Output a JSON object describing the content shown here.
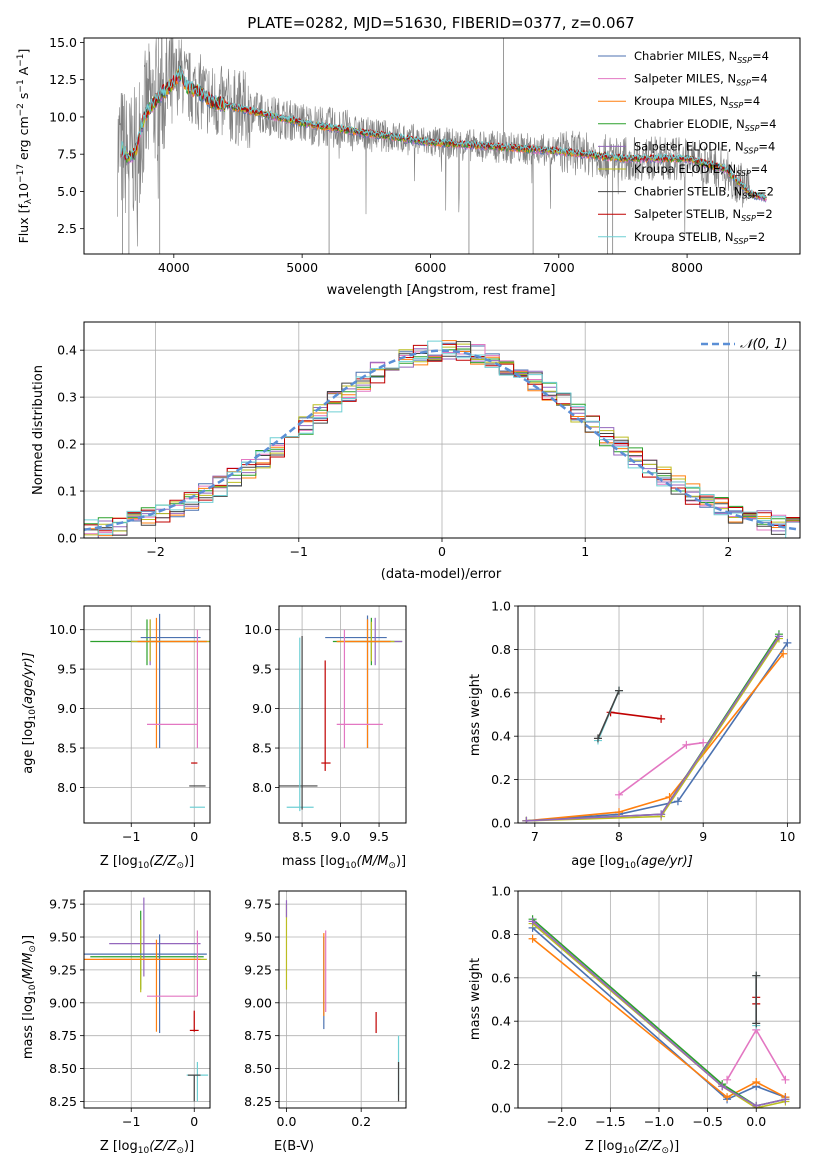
{
  "chart_data": [
    {
      "id": "spectrum",
      "type": "line",
      "title": "PLATE=0282, MJD=51630, FIBERID=0377, z=0.067",
      "xlabel": "wavelength [Angstrom, rest frame]",
      "ylabel": "Flux [f",
      "xlim": [
        3300,
        8880
      ],
      "ylim": [
        0.8,
        15.3
      ],
      "xticks": [
        4000,
        5000,
        6000,
        7000,
        8000
      ],
      "yticks": [
        2.5,
        5.0,
        7.5,
        10.0,
        12.5,
        15.0
      ],
      "grid": false,
      "legend_position": "top-right",
      "data_series": {
        "name": "data",
        "color": "#808080"
      },
      "legend": [
        {
          "label": "Chabrier MILES, N",
          "sub": "SSP",
          "tail": "=4",
          "color": "#4c72b0"
        },
        {
          "label": "Salpeter MILES, N",
          "sub": "SSP",
          "tail": "=4",
          "color": "#e377c2"
        },
        {
          "label": "Kroupa MILES, N",
          "sub": "SSP",
          "tail": "=4",
          "color": "#ff7f0e"
        },
        {
          "label": "Chabrier ELODIE, N",
          "sub": "SSP",
          "tail": "=4",
          "color": "#2ca02c"
        },
        {
          "label": "Salpeter ELODIE, N",
          "sub": "SSP",
          "tail": "=4",
          "color": "#9467bd"
        },
        {
          "label": "Kroupa ELODIE, N",
          "sub": "SSP",
          "tail": "=4",
          "color": "#bcbd22"
        },
        {
          "label": "Chabrier STELIB, N",
          "sub": "SSP",
          "tail": "=2",
          "color": "#444444"
        },
        {
          "label": "Salpeter STELIB, N",
          "sub": "SSP",
          "tail": "=2",
          "color": "#c00000"
        },
        {
          "label": "Kroupa STELIB, N",
          "sub": "SSP",
          "tail": "=2",
          "color": "#6fcfd4"
        }
      ],
      "model_continuum": {
        "x": [
          3600,
          3650,
          3700,
          3750,
          3800,
          3900,
          4000,
          4050,
          4100,
          4200,
          4300,
          4500,
          4800,
          5000,
          5500,
          6000,
          6500,
          7000,
          7500,
          8000,
          8300,
          8500,
          8650
        ],
        "y": [
          7.8,
          7.2,
          7.6,
          9.5,
          10.5,
          11.5,
          12.3,
          13.0,
          12.0,
          11.7,
          11.0,
          10.6,
          10.0,
          9.6,
          8.9,
          8.3,
          8.0,
          7.7,
          7.2,
          7.2,
          6.5,
          4.8,
          4.5
        ]
      }
    },
    {
      "id": "residuals",
      "type": "line",
      "xlabel": "(data-model)/error",
      "ylabel": "Normed distribution",
      "xlim": [
        -2.5,
        2.5
      ],
      "ylim": [
        0,
        0.46
      ],
      "xticks": [
        -2,
        -1,
        0,
        1,
        2
      ],
      "yticks": [
        0.0,
        0.1,
        0.2,
        0.3,
        0.4
      ],
      "grid": true,
      "legend_position": "top-right",
      "gaussian": {
        "label": "𝒩(0, 1)",
        "color": "#5b8fd6"
      },
      "bin_width": 0.1
    },
    {
      "id": "age-vs-Z",
      "type": "scatter",
      "xlabel": "Z [log",
      "ylabel": "age  [log",
      "xlim": [
        -1.75,
        0.25
      ],
      "ylim": [
        7.55,
        10.3
      ],
      "xticks": [
        -1,
        0
      ],
      "yticks": [
        8.0,
        8.5,
        9.0,
        9.5,
        10.0
      ],
      "grid": true,
      "points": [
        {
          "x": -0.75,
          "y": 9.85,
          "xerr": [
            0.9,
            0.95
          ],
          "yerr": [
            0.3,
            0.28
          ],
          "color": "#2ca02c"
        },
        {
          "x": -0.7,
          "y": 9.85,
          "xerr": [
            0.3,
            0.95
          ],
          "yerr": [
            0.3,
            0.28
          ],
          "color": "#9467bd"
        },
        {
          "x": -0.7,
          "y": 9.85,
          "xerr": [
            0.3,
            0.95
          ],
          "yerr": [
            0.25,
            0.28
          ],
          "color": "#bcbd22"
        },
        {
          "x": -0.55,
          "y": 9.9,
          "xerr": [
            0.3,
            0.65
          ],
          "yerr": [
            1.4,
            0.3
          ],
          "color": "#4c72b0"
        },
        {
          "x": -0.6,
          "y": 9.85,
          "xerr": [
            0.3,
            0.8
          ],
          "yerr": [
            1.35,
            0.3
          ],
          "color": "#ff7f0e"
        },
        {
          "x": -0.4,
          "y": 8.8,
          "xerr": [
            0.35,
            0.45
          ],
          "yerr": [
            0,
            0
          ],
          "color": "#e377c2"
        },
        {
          "x": 0.05,
          "y": 9.9,
          "xerr": [
            0,
            0
          ],
          "yerr": [
            1.4,
            0.1
          ],
          "color": "#e377c2"
        },
        {
          "x": 0.0,
          "y": 8.31,
          "xerr": [
            0.05,
            0.05
          ],
          "yerr": [
            0,
            0
          ],
          "color": "#c00000"
        },
        {
          "x": 0.05,
          "y": 8.02,
          "xerr": [
            0.13,
            0.13
          ],
          "yerr": [
            0,
            0
          ],
          "color": "#444444"
        },
        {
          "x": 0.05,
          "y": 7.75,
          "xerr": [
            0.12,
            0.12
          ],
          "yerr": [
            0,
            0
          ],
          "color": "#6fcfd4"
        }
      ]
    },
    {
      "id": "age-vs-mass",
      "type": "scatter",
      "xlabel": "mass [log",
      "ylabel": "",
      "xlim": [
        8.2,
        9.85
      ],
      "ylim": [
        7.55,
        10.3
      ],
      "xticks": [
        8.5,
        9.0,
        9.5
      ],
      "tick_labels": [
        "8.5",
        "9.0",
        "9.5"
      ],
      "yticks": [
        8.0,
        8.5,
        9.0,
        9.5,
        10.0
      ],
      "grid": true,
      "points": [
        {
          "x": 9.35,
          "y": 9.9,
          "xerr": [
            0.55,
            0.25
          ],
          "yerr": [
            1.4,
            0.28
          ],
          "color": "#4c72b0"
        },
        {
          "x": 9.4,
          "y": 9.85,
          "xerr": [
            0.5,
            0.4
          ],
          "yerr": [
            0.3,
            0.3
          ],
          "color": "#2ca02c"
        },
        {
          "x": 9.45,
          "y": 9.85,
          "xerr": [
            0.4,
            0.35
          ],
          "yerr": [
            0.3,
            0.3
          ],
          "color": "#9467bd"
        },
        {
          "x": 9.4,
          "y": 9.85,
          "xerr": [
            0.45,
            0.3
          ],
          "yerr": [
            0.25,
            0.25
          ],
          "color": "#bcbd22"
        },
        {
          "x": 9.35,
          "y": 9.85,
          "xerr": [
            0.4,
            0.3
          ],
          "yerr": [
            1.35,
            0.28
          ],
          "color": "#ff7f0e"
        },
        {
          "x": 9.25,
          "y": 8.8,
          "xerr": [
            0.3,
            0.3
          ],
          "yerr": [
            0,
            0
          ],
          "color": "#e377c2"
        },
        {
          "x": 9.05,
          "y": 9.9,
          "xerr": [
            0,
            0
          ],
          "yerr": [
            1.4,
            0.1
          ],
          "color": "#e377c2"
        },
        {
          "x": 8.8,
          "y": 8.31,
          "xerr": [
            0.05,
            0.07
          ],
          "yerr": [
            0.1,
            1.3
          ],
          "color": "#c00000"
        },
        {
          "x": 8.45,
          "y": 8.02,
          "xerr": [
            0.25,
            0.25
          ],
          "yerr": [
            0,
            0
          ],
          "color": "#444444"
        },
        {
          "x": 8.55,
          "y": 7.75,
          "xerr": [
            0.25,
            0.1
          ],
          "yerr": [
            0,
            0
          ],
          "color": "#6fcfd4"
        },
        {
          "x": 8.47,
          "y": 8.0,
          "xerr": [
            0,
            0
          ],
          "yerr": [
            0.3,
            1.9
          ],
          "color": "#6fcfd4"
        },
        {
          "x": 8.5,
          "y": 8.02,
          "xerr": [
            0,
            0
          ],
          "yerr": [
            0.3,
            1.9
          ],
          "color": "#444444"
        }
      ]
    },
    {
      "id": "mw-vs-age",
      "type": "line",
      "xlabel": "age  [log",
      "ylabel": "mass weight",
      "xlim": [
        6.8,
        10.15
      ],
      "ylim": [
        0,
        1
      ],
      "xticks": [
        7,
        8,
        9,
        10
      ],
      "yticks": [
        0.0,
        0.2,
        0.4,
        0.6,
        0.8,
        1.0
      ],
      "grid": true,
      "series": [
        {
          "color": "#4c72b0",
          "x": [
            6.9,
            8.0,
            8.7,
            10.0
          ],
          "y": [
            0.01,
            0.04,
            0.1,
            0.83
          ]
        },
        {
          "color": "#ff7f0e",
          "x": [
            6.9,
            8.0,
            8.6,
            9.95
          ],
          "y": [
            0.01,
            0.05,
            0.12,
            0.78
          ]
        },
        {
          "color": "#2ca02c",
          "x": [
            6.9,
            8.5,
            9.9
          ],
          "y": [
            0.01,
            0.04,
            0.87
          ]
        },
        {
          "color": "#bcbd22",
          "x": [
            6.9,
            8.5,
            9.9
          ],
          "y": [
            0.01,
            0.03,
            0.85
          ]
        },
        {
          "color": "#9467bd",
          "x": [
            6.9,
            8.5,
            9.9
          ],
          "y": [
            0.01,
            0.04,
            0.86
          ]
        },
        {
          "color": "#e377c2",
          "x": [
            8.0,
            8.8,
            9.0
          ],
          "y": [
            0.13,
            0.36,
            0.37
          ]
        },
        {
          "color": "#c00000",
          "x": [
            7.9,
            8.5
          ],
          "y": [
            0.51,
            0.48
          ]
        },
        {
          "color": "#6fcfd4",
          "x": [
            7.75,
            8.0
          ],
          "y": [
            0.38,
            0.61
          ]
        },
        {
          "color": "#444444",
          "x": [
            7.75,
            8.0
          ],
          "y": [
            0.39,
            0.61
          ]
        }
      ]
    },
    {
      "id": "mass-vs-Z",
      "type": "scatter",
      "xlabel": "Z [log",
      "ylabel": "mass [log",
      "xlim": [
        -1.75,
        0.25
      ],
      "ylim": [
        8.2,
        9.85
      ],
      "xticks": [
        -1,
        0
      ],
      "yticks": [
        8.25,
        8.5,
        8.75,
        9.0,
        9.25,
        9.5,
        9.75
      ],
      "grid": true,
      "points": [
        {
          "x": -0.85,
          "y": 9.35,
          "xerr": [
            0.8,
            1.0
          ],
          "yerr": [
            0.25,
            0.35
          ],
          "color": "#2ca02c"
        },
        {
          "x": -0.8,
          "y": 9.45,
          "xerr": [
            0.55,
            0.9
          ],
          "yerr": [
            0.25,
            0.35
          ],
          "color": "#9467bd"
        },
        {
          "x": -0.85,
          "y": 9.33,
          "xerr": [
            0.6,
            1.05
          ],
          "yerr": [
            0.25,
            0.3
          ],
          "color": "#bcbd22"
        },
        {
          "x": -0.55,
          "y": 9.37,
          "xerr": [
            1.2,
            0.75
          ],
          "yerr": [
            0.6,
            0.15
          ],
          "color": "#4c72b0"
        },
        {
          "x": -0.6,
          "y": 9.33,
          "xerr": [
            1.15,
            0.7
          ],
          "yerr": [
            0.55,
            0.15
          ],
          "color": "#ff7f0e"
        },
        {
          "x": -0.4,
          "y": 9.05,
          "xerr": [
            0.35,
            0.45
          ],
          "yerr": [
            0,
            0
          ],
          "color": "#e377c2"
        },
        {
          "x": 0.05,
          "y": 9.35,
          "xerr": [
            0,
            0
          ],
          "yerr": [
            0.3,
            0.2
          ],
          "color": "#e377c2"
        },
        {
          "x": 0.0,
          "y": 8.79,
          "xerr": [
            0.07,
            0.07
          ],
          "yerr": [
            0.01,
            0.15
          ],
          "color": "#c00000"
        },
        {
          "x": 0.05,
          "y": 8.45,
          "xerr": [
            0.17,
            0.17
          ],
          "yerr": [
            0.2,
            0.1
          ],
          "color": "#6fcfd4"
        },
        {
          "x": 0.0,
          "y": 8.45,
          "xerr": [
            0.1,
            0.1
          ],
          "yerr": [
            0.2,
            0.0
          ],
          "color": "#444444"
        }
      ]
    },
    {
      "id": "mass-vs-ebv",
      "type": "scatter",
      "xlabel": "E(B-V)",
      "ylabel": "",
      "xlim": [
        -0.02,
        0.32
      ],
      "ylim": [
        8.2,
        9.85
      ],
      "xticks": [
        0.0,
        0.2
      ],
      "tick_labels": [
        "0.0",
        "0.2"
      ],
      "yticks": [
        8.25,
        8.5,
        8.75,
        9.0,
        9.25,
        9.5,
        9.75
      ],
      "grid": true,
      "points": [
        {
          "x": 0.0,
          "y": 9.45,
          "xerr": [
            0,
            0
          ],
          "yerr": [
            0.35,
            0.3
          ],
          "color": "#bcbd22"
        },
        {
          "x": 0.0,
          "y": 9.7,
          "xerr": [
            0,
            0
          ],
          "yerr": [
            0.05,
            0.08
          ],
          "color": "#9467bd"
        },
        {
          "x": 0.1,
          "y": 9.2,
          "xerr": [
            0,
            0
          ],
          "yerr": [
            0.4,
            0.3
          ],
          "color": "#4c72b0"
        },
        {
          "x": 0.1,
          "y": 9.2,
          "xerr": [
            0,
            0
          ],
          "yerr": [
            0.3,
            0.33
          ],
          "color": "#ff7f0e"
        },
        {
          "x": 0.105,
          "y": 9.2,
          "xerr": [
            0,
            0
          ],
          "yerr": [
            0.27,
            0.35
          ],
          "color": "#e377c2"
        },
        {
          "x": 0.24,
          "y": 8.85,
          "xerr": [
            0,
            0
          ],
          "yerr": [
            0.08,
            0.08
          ],
          "color": "#c00000"
        },
        {
          "x": 0.3,
          "y": 8.55,
          "xerr": [
            0,
            0
          ],
          "yerr": [
            0.25,
            0.2
          ],
          "color": "#6fcfd4"
        },
        {
          "x": 0.3,
          "y": 8.45,
          "xerr": [
            0,
            0
          ],
          "yerr": [
            0.2,
            0.1
          ],
          "color": "#444444"
        }
      ]
    },
    {
      "id": "mw-vs-Z",
      "type": "line",
      "xlabel": "Z [log",
      "ylabel": "mass weight",
      "xlim": [
        -2.45,
        0.45
      ],
      "ylim": [
        0,
        1
      ],
      "xticks": [
        -2.0,
        -1.5,
        -1.0,
        -0.5,
        0.0
      ],
      "tick_labels": [
        "−2.0",
        "−1.5",
        "−1.0",
        "−0.5",
        "0.0"
      ],
      "yticks": [
        0.0,
        0.2,
        0.4,
        0.6,
        0.8,
        1.0
      ],
      "grid": true,
      "series": [
        {
          "color": "#4c72b0",
          "x": [
            -2.3,
            -0.3,
            0.0,
            0.3
          ],
          "y": [
            0.83,
            0.04,
            0.1,
            0.05
          ]
        },
        {
          "color": "#ff7f0e",
          "x": [
            -2.3,
            -0.3,
            0.0,
            0.3
          ],
          "y": [
            0.78,
            0.05,
            0.12,
            0.05
          ]
        },
        {
          "color": "#2ca02c",
          "x": [
            -2.3,
            -0.35,
            0.0,
            0.3
          ],
          "y": [
            0.87,
            0.11,
            0.01,
            0.04
          ]
        },
        {
          "color": "#bcbd22",
          "x": [
            -2.3,
            -0.35,
            0.0,
            0.3
          ],
          "y": [
            0.85,
            0.1,
            0.0,
            0.03
          ]
        },
        {
          "color": "#9467bd",
          "x": [
            -2.3,
            -0.35,
            0.0,
            0.3
          ],
          "y": [
            0.86,
            0.1,
            0.01,
            0.04
          ]
        },
        {
          "color": "#e377c2",
          "x": [
            -0.3,
            0.0,
            0.3
          ],
          "y": [
            0.13,
            0.36,
            0.13
          ]
        },
        {
          "color": "#c00000",
          "x": [
            0.0,
            0.0
          ],
          "y": [
            0.51,
            0.48
          ]
        },
        {
          "color": "#6fcfd4",
          "x": [
            0.0,
            0.0
          ],
          "y": [
            0.38,
            0.61
          ]
        },
        {
          "color": "#444444",
          "x": [
            0.0,
            0.0
          ],
          "y": [
            0.39,
            0.61
          ]
        }
      ]
    }
  ],
  "label_parts": {
    "flux_ylabel_tail": "10",
    "flux_sup1": "−17",
    "flux_mid": " erg cm",
    "flux_sup2": "−2",
    "flux_s": " s",
    "flux_sup3": "−1",
    "flux_end": " A",
    "flux_sup4": "−1",
    "flux_close": "]",
    "flux_sub_lambda": "λ",
    "log_sub": "10",
    "age_unit": "(age/yr)]",
    "z_unit": "(Z/Z",
    "z_sun": "⊙",
    "z_close": ")]",
    "mass_unit": "(M/M",
    "mass_close": ")]"
  }
}
